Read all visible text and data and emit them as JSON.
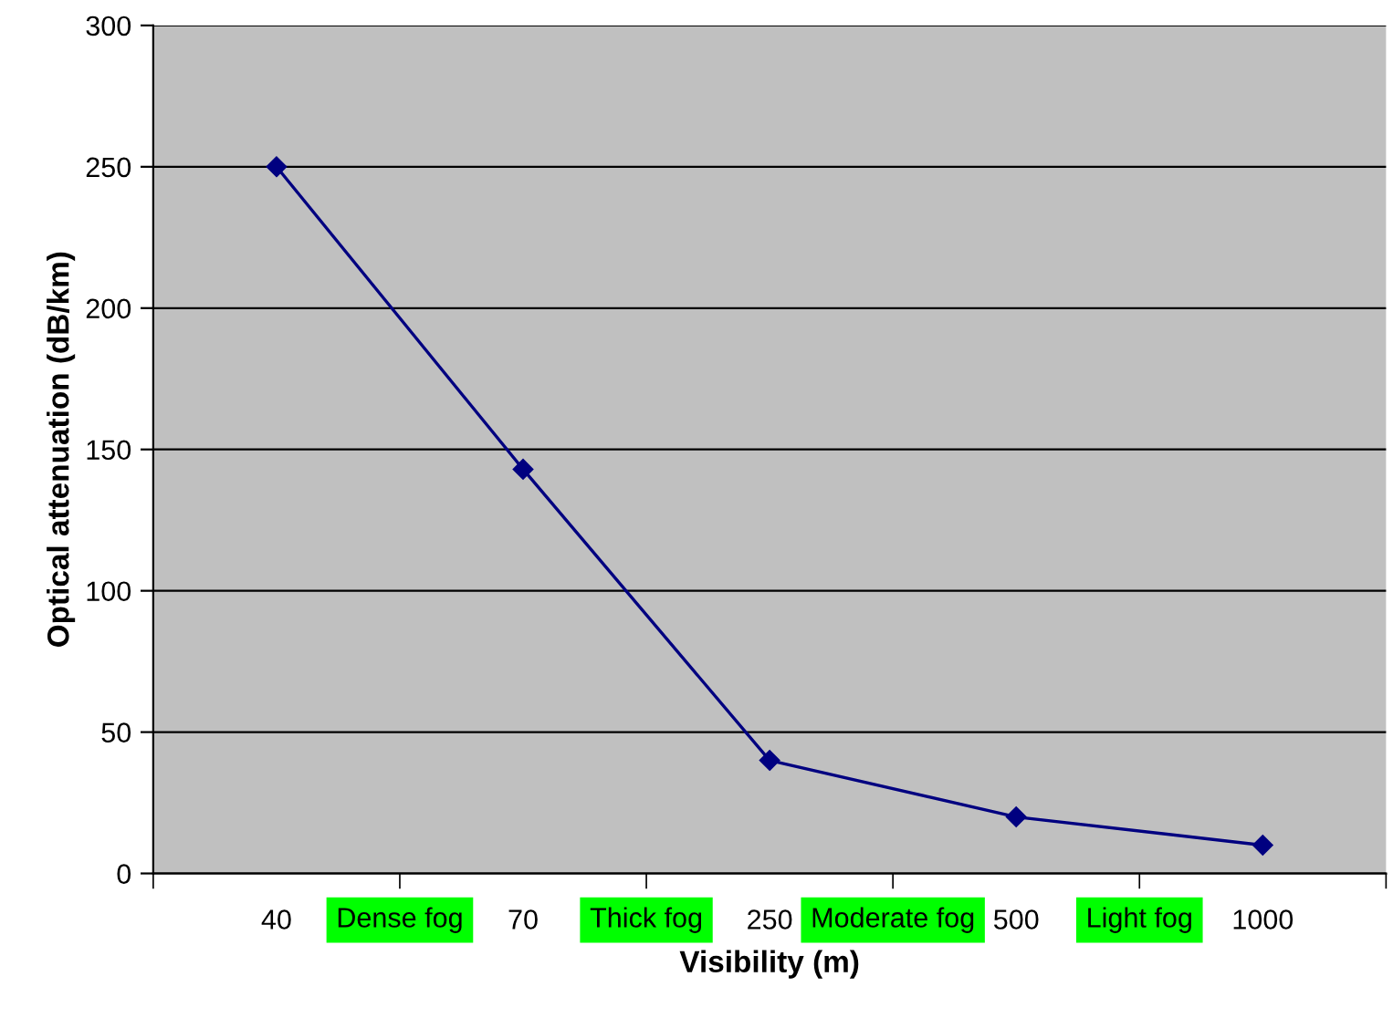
{
  "chart_data": {
    "type": "line",
    "xlabel": "Visibility (m)",
    "ylabel": "Optical attenuation (dB/km)",
    "categories": [
      "40",
      "70",
      "250",
      "500",
      "1000"
    ],
    "series": [
      {
        "color": "#000080",
        "values": [
          250,
          143,
          40,
          20,
          10
        ]
      }
    ],
    "ylim": [
      0,
      300
    ],
    "yticks": [
      0,
      50,
      100,
      150,
      200,
      250,
      300
    ],
    "grid": "y",
    "marker": "diamond",
    "line_style": "solid",
    "legend": false,
    "annotations": [
      "Dense fog",
      "Thick fog",
      "Moderate fog",
      "Light fog"
    ]
  }
}
